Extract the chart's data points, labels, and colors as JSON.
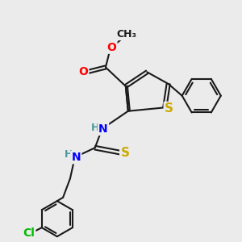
{
  "bg_color": "#ebebeb",
  "bond_color": "#1a1a1a",
  "bond_width": 1.5,
  "atom_colors": {
    "O": "#ff0000",
    "N": "#0000ff",
    "S": "#ccaa00",
    "Cl": "#00bb00",
    "C": "#1a1a1a",
    "H": "#4a9a9a"
  },
  "font_size_atom": 10,
  "font_size_small": 8
}
